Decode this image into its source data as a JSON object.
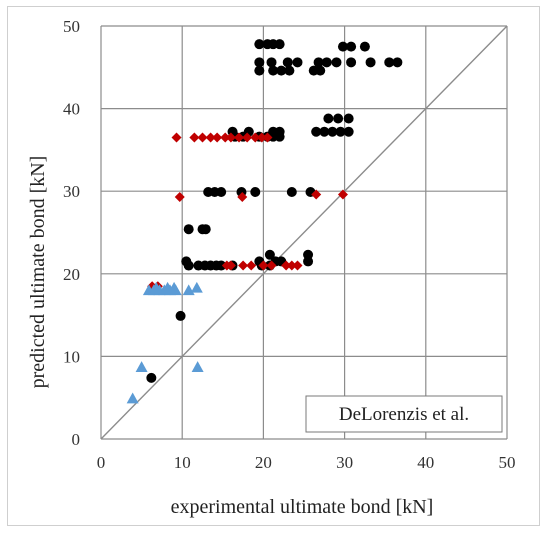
{
  "chart_data": {
    "type": "scatter",
    "title": "",
    "xlabel": "experimental ultimate bond [kN]",
    "ylabel": "predicted ultimate bond [kN]",
    "xlim": [
      0,
      50
    ],
    "ylim": [
      0,
      50
    ],
    "xticks": [
      "0",
      "10",
      "20",
      "30",
      "40",
      "50"
    ],
    "yticks": [
      "0",
      "10",
      "20",
      "30",
      "40",
      "50"
    ],
    "grid": true,
    "reference_line": "y = x",
    "annotation": "DeLorenzis et al.",
    "colors": {
      "black_circles": "#000000",
      "red_diamonds": "#c00000",
      "blue_triangles": "#5b9bd5",
      "grid": "#8c8c8c",
      "reference_line": "#8c8c8c"
    },
    "series": [
      {
        "marker": "circle",
        "color": "#000000",
        "points": [
          [
            19.5,
            47.8
          ],
          [
            20.5,
            47.8
          ],
          [
            21.2,
            47.8
          ],
          [
            22.0,
            47.8
          ],
          [
            29.8,
            47.5
          ],
          [
            30.8,
            47.5
          ],
          [
            32.5,
            47.5
          ],
          [
            19.5,
            45.6
          ],
          [
            21.0,
            45.6
          ],
          [
            23.0,
            45.6
          ],
          [
            24.2,
            45.6
          ],
          [
            26.8,
            45.6
          ],
          [
            27.8,
            45.6
          ],
          [
            29.0,
            45.6
          ],
          [
            30.8,
            45.6
          ],
          [
            33.2,
            45.6
          ],
          [
            35.5,
            45.6
          ],
          [
            36.5,
            45.6
          ],
          [
            19.5,
            44.6
          ],
          [
            21.2,
            44.6
          ],
          [
            22.2,
            44.6
          ],
          [
            23.2,
            44.6
          ],
          [
            26.2,
            44.6
          ],
          [
            27.0,
            44.6
          ],
          [
            28.0,
            38.8
          ],
          [
            29.2,
            38.8
          ],
          [
            30.5,
            38.8
          ],
          [
            16.2,
            37.2
          ],
          [
            18.2,
            37.2
          ],
          [
            21.2,
            37.2
          ],
          [
            22.0,
            37.2
          ],
          [
            26.5,
            37.2
          ],
          [
            27.5,
            37.2
          ],
          [
            28.5,
            37.2
          ],
          [
            29.5,
            37.2
          ],
          [
            30.5,
            37.2
          ],
          [
            16.5,
            36.6
          ],
          [
            17.5,
            36.6
          ],
          [
            19.5,
            36.6
          ],
          [
            20.5,
            36.6
          ],
          [
            21.2,
            36.6
          ],
          [
            22.0,
            36.6
          ],
          [
            13.2,
            29.9
          ],
          [
            14.0,
            29.9
          ],
          [
            14.8,
            29.9
          ],
          [
            17.3,
            29.9
          ],
          [
            19.0,
            29.9
          ],
          [
            23.5,
            29.9
          ],
          [
            25.8,
            29.9
          ],
          [
            10.8,
            25.4
          ],
          [
            12.5,
            25.4
          ],
          [
            12.9,
            25.4
          ],
          [
            20.8,
            22.3
          ],
          [
            25.5,
            22.3
          ],
          [
            10.5,
            21.5
          ],
          [
            19.5,
            21.5
          ],
          [
            21.5,
            21.5
          ],
          [
            22.2,
            21.5
          ],
          [
            25.5,
            21.5
          ],
          [
            10.8,
            21.0
          ],
          [
            12.0,
            21.0
          ],
          [
            12.8,
            21.0
          ],
          [
            13.5,
            21.0
          ],
          [
            14.2,
            21.0
          ],
          [
            14.8,
            21.0
          ],
          [
            16.2,
            21.0
          ],
          [
            19.8,
            21.0
          ],
          [
            20.8,
            21.0
          ],
          [
            9.8,
            14.9
          ],
          [
            6.2,
            7.4
          ]
        ]
      },
      {
        "marker": "diamond",
        "color": "#c00000",
        "points": [
          [
            9.3,
            36.5
          ],
          [
            11.5,
            36.5
          ],
          [
            12.5,
            36.5
          ],
          [
            13.5,
            36.5
          ],
          [
            14.3,
            36.5
          ],
          [
            15.3,
            36.5
          ],
          [
            16.0,
            36.5
          ],
          [
            17.0,
            36.5
          ],
          [
            18.0,
            36.5
          ],
          [
            19.0,
            36.5
          ],
          [
            19.8,
            36.5
          ],
          [
            20.5,
            36.5
          ],
          [
            9.7,
            29.3
          ],
          [
            17.4,
            29.3
          ],
          [
            26.5,
            29.6
          ],
          [
            29.8,
            29.6
          ],
          [
            15.5,
            21.0
          ],
          [
            16.0,
            21.0
          ],
          [
            17.5,
            21.0
          ],
          [
            18.5,
            21.0
          ],
          [
            20.0,
            21.0
          ],
          [
            21.0,
            21.0
          ],
          [
            22.8,
            21.0
          ],
          [
            23.5,
            21.0
          ],
          [
            24.2,
            21.0
          ],
          [
            6.3,
            18.5
          ],
          [
            7.0,
            18.5
          ]
        ]
      },
      {
        "marker": "triangle",
        "color": "#5b9bd5",
        "points": [
          [
            5.9,
            18.0
          ],
          [
            6.5,
            18.0
          ],
          [
            7.2,
            18.0
          ],
          [
            7.8,
            18.0
          ],
          [
            8.5,
            18.0
          ],
          [
            9.2,
            18.0
          ],
          [
            10.8,
            18.0
          ],
          [
            6.8,
            18.3
          ],
          [
            8.2,
            18.3
          ],
          [
            9.0,
            18.3
          ],
          [
            11.8,
            18.3
          ],
          [
            5.0,
            8.7
          ],
          [
            11.9,
            8.7
          ],
          [
            3.9,
            4.9
          ]
        ]
      }
    ]
  }
}
